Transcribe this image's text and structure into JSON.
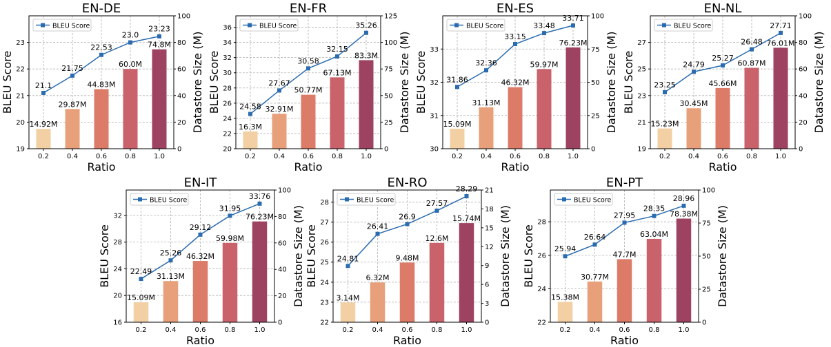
{
  "figure": {
    "bar_colors": [
      "#f2d0a4",
      "#e8a07a",
      "#dc7b68",
      "#c9626b",
      "#9e4261"
    ],
    "line_color": "#2b6cb0",
    "grid": true,
    "legend_position": "top-left"
  },
  "chart_data": [
    {
      "type": "bar+line",
      "title": "EN-DE",
      "xlabel": "Ratio",
      "ylabel": "BLEU Score",
      "y2label": "Datastore Size (M)",
      "categories": [
        "0.2",
        "0.4",
        "0.6",
        "0.8",
        "1.0"
      ],
      "ylim": [
        19,
        24
      ],
      "yticks": [
        19,
        20,
        21,
        22,
        23
      ],
      "y2lim": [
        0,
        100
      ],
      "y2ticks": [
        0,
        20,
        40,
        60,
        80,
        100
      ],
      "series": [
        {
          "name": "BLEU Score",
          "type": "line",
          "axis": "left",
          "values": [
            21.1,
            21.75,
            22.53,
            23.0,
            23.23
          ],
          "labels": [
            "21.1",
            "21.75",
            "22.53",
            "23.0",
            "23.23"
          ]
        },
        {
          "type": "bar",
          "axis": "right",
          "values": [
            14.92,
            29.87,
            44.83,
            60.0,
            74.8
          ],
          "labels": [
            "14.92M",
            "29.87M",
            "44.83M",
            "60.0M",
            "74.8M"
          ]
        }
      ]
    },
    {
      "type": "bar+line",
      "title": "EN-FR",
      "xlabel": "Ratio",
      "ylabel": "BLEU Score",
      "y2label": "Datastore Size (M)",
      "categories": [
        "0.2",
        "0.4",
        "0.6",
        "0.8",
        "1.0"
      ],
      "ylim": [
        20,
        37.5
      ],
      "yticks": [
        20,
        22,
        24,
        26,
        28,
        30,
        32,
        34,
        36
      ],
      "y2lim": [
        0,
        125
      ],
      "y2ticks": [
        0,
        25,
        50,
        75,
        100,
        125
      ],
      "series": [
        {
          "name": "BLEU Score",
          "type": "line",
          "axis": "left",
          "values": [
            24.58,
            27.67,
            30.58,
            32.15,
            35.26
          ],
          "labels": [
            "24.58",
            "27.67",
            "30.58",
            "32.15",
            "35.26"
          ]
        },
        {
          "type": "bar",
          "axis": "right",
          "values": [
            16.3,
            32.91,
            50.77,
            67.13,
            83.3
          ],
          "labels": [
            "16.3M",
            "32.91M",
            "50.77M",
            "67.13M",
            "83.3M"
          ]
        }
      ]
    },
    {
      "type": "bar+line",
      "title": "EN-ES",
      "xlabel": "Ratio",
      "ylabel": "BLEU Score",
      "y2label": "Datastore Size (M)",
      "categories": [
        "0.2",
        "0.4",
        "0.6",
        "0.8",
        "1.0"
      ],
      "ylim": [
        30,
        34
      ],
      "yticks": [
        30,
        31,
        32,
        33
      ],
      "y2lim": [
        0,
        100
      ],
      "y2ticks": [
        0,
        25,
        50,
        75,
        100
      ],
      "series": [
        {
          "name": "BLEU Score",
          "type": "line",
          "axis": "left",
          "values": [
            31.86,
            32.36,
            33.15,
            33.48,
            33.71
          ],
          "labels": [
            "31.86",
            "32.36",
            "33.15",
            "33.48",
            "33.71"
          ]
        },
        {
          "type": "bar",
          "axis": "right",
          "values": [
            15.09,
            31.13,
            46.32,
            59.97,
            76.23
          ],
          "labels": [
            "15.09M",
            "31.13M",
            "46.32M",
            "59.97M",
            "76.23M"
          ]
        }
      ]
    },
    {
      "type": "bar+line",
      "title": "EN-NL",
      "xlabel": "Ratio",
      "ylabel": "BLEU Score",
      "y2label": "Datastore Size (M)",
      "categories": [
        "0.2",
        "0.4",
        "0.6",
        "0.8",
        "1.0"
      ],
      "ylim": [
        19,
        29
      ],
      "yticks": [
        19,
        21,
        23,
        25,
        27
      ],
      "y2lim": [
        0,
        100
      ],
      "y2ticks": [
        0,
        20,
        40,
        60,
        80,
        100
      ],
      "series": [
        {
          "name": "BLEU Score",
          "type": "line",
          "axis": "left",
          "values": [
            23.25,
            24.79,
            25.27,
            26.48,
            27.71
          ],
          "labels": [
            "23.25",
            "24.79",
            "25.27",
            "26.48",
            "27.71"
          ]
        },
        {
          "type": "bar",
          "axis": "right",
          "values": [
            15.23,
            30.45,
            45.66,
            60.87,
            76.01
          ],
          "labels": [
            "15.23M",
            "30.45M",
            "45.66M",
            "60.87M",
            "76.01M"
          ]
        }
      ]
    },
    {
      "type": "bar+line",
      "title": "EN-IT",
      "xlabel": "Ratio",
      "ylabel": "BLEU Score",
      "y2label": "Datastore Size (M)",
      "categories": [
        "0.2",
        "0.4",
        "0.6",
        "0.8",
        "1.0"
      ],
      "ylim": [
        16,
        35.8
      ],
      "yticks": [
        16,
        20,
        24,
        28,
        32
      ],
      "y2lim": [
        0,
        100
      ],
      "y2ticks": [
        0,
        20,
        40,
        60,
        80,
        100
      ],
      "series": [
        {
          "name": "BLEU Score",
          "type": "line",
          "axis": "left",
          "values": [
            22.49,
            25.26,
            29.12,
            31.95,
            33.76
          ],
          "labels": [
            "22.49",
            "25.26",
            "29.12",
            "31.95",
            "33.76"
          ]
        },
        {
          "type": "bar",
          "axis": "right",
          "values": [
            15.09,
            31.13,
            46.32,
            59.98,
            76.23
          ],
          "labels": [
            "15.09M",
            "31.13M",
            "46.32M",
            "59.98M",
            "76.23M"
          ]
        }
      ]
    },
    {
      "type": "bar+line",
      "title": "EN-RO",
      "xlabel": "Ratio",
      "ylabel": "BLEU Score",
      "y2label": "Datastore Size (M)",
      "categories": [
        "0.2",
        "0.4",
        "0.6",
        "0.8",
        "1.0"
      ],
      "ylim": [
        22,
        28.6
      ],
      "yticks": [
        22,
        23,
        24,
        25,
        26,
        27,
        28
      ],
      "y2lim": [
        0,
        21
      ],
      "y2ticks": [
        0,
        3,
        6,
        9,
        12,
        15,
        18,
        21
      ],
      "series": [
        {
          "name": "BLEU Score",
          "type": "line",
          "axis": "left",
          "values": [
            24.81,
            26.41,
            26.9,
            27.57,
            28.29
          ],
          "labels": [
            "24.81",
            "26.41",
            "26.9",
            "27.57",
            "28.29"
          ]
        },
        {
          "type": "bar",
          "axis": "right",
          "values": [
            3.14,
            6.32,
            9.48,
            12.6,
            15.74
          ],
          "labels": [
            "3.14M",
            "6.32M",
            "9.48M",
            "12.6M",
            "15.74M"
          ]
        }
      ]
    },
    {
      "type": "bar+line",
      "title": "EN-PT",
      "xlabel": "Ratio",
      "ylabel": "BLEU Score",
      "y2label": "Datastore Size (M)",
      "categories": [
        "0.2",
        "0.4",
        "0.6",
        "0.8",
        "1.0"
      ],
      "ylim": [
        22,
        29.9
      ],
      "yticks": [
        22,
        24,
        26,
        28
      ],
      "y2lim": [
        0,
        100
      ],
      "y2ticks": [
        0,
        25,
        50,
        75,
        100
      ],
      "series": [
        {
          "name": "BLEU Score",
          "type": "line",
          "axis": "left",
          "values": [
            25.94,
            26.64,
            27.95,
            28.35,
            28.96
          ],
          "labels": [
            "25.94",
            "26.64",
            "27.95",
            "28.35",
            "28.96"
          ]
        },
        {
          "type": "bar",
          "axis": "right",
          "values": [
            15.38,
            30.77,
            47.7,
            63.04,
            78.38
          ],
          "labels": [
            "15.38M",
            "30.77M",
            "47.7M",
            "63.04M",
            "78.38M"
          ]
        }
      ]
    }
  ]
}
